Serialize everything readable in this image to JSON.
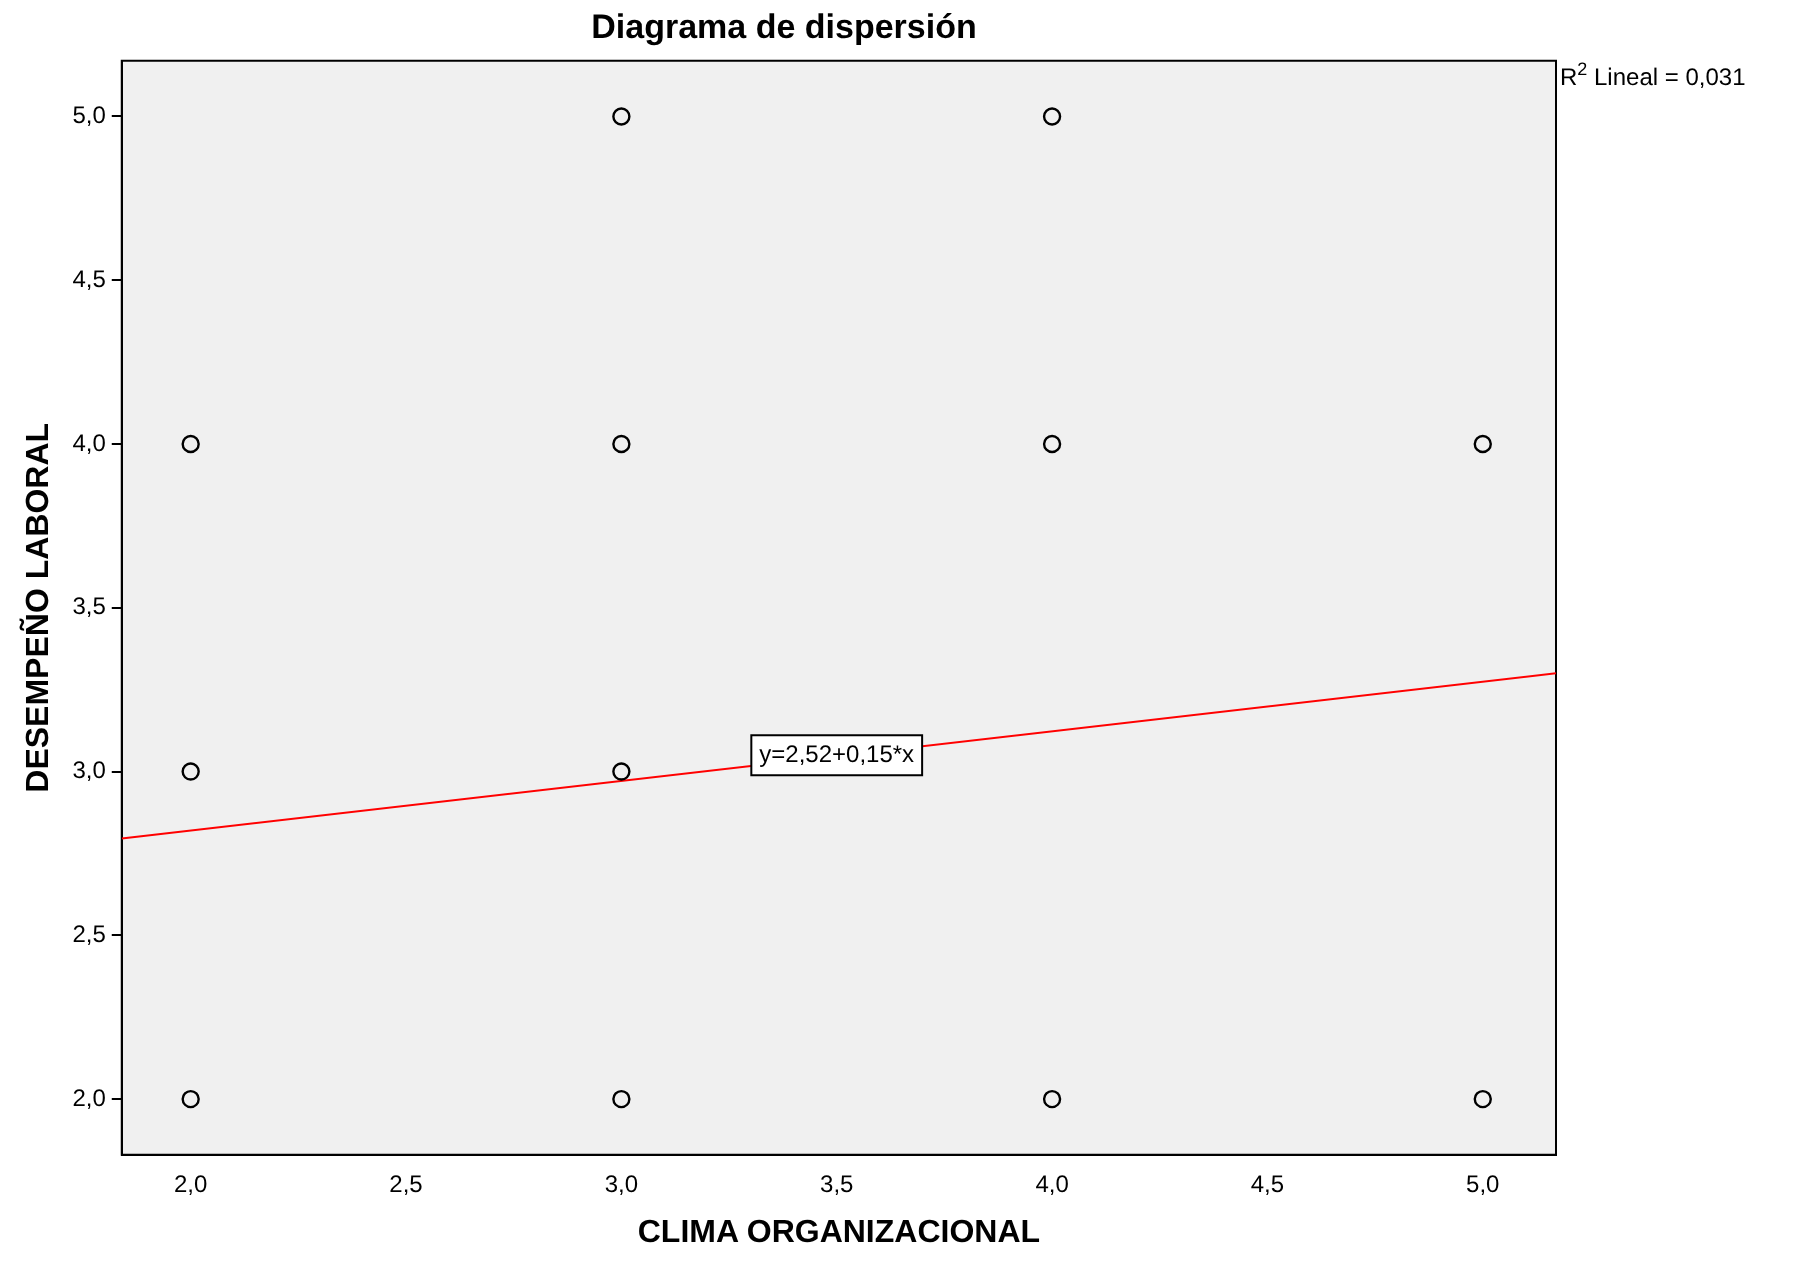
{
  "chart_data": {
    "type": "scatter",
    "title": "Diagrama de dispersión",
    "xlabel": "CLIMA ORGANIZACIONAL",
    "ylabel": "DESEMPEÑO LABORAL",
    "series": [
      {
        "color": "#000000",
        "marker": "circle",
        "x": [
          2,
          2,
          2,
          3,
          3,
          3,
          3,
          4,
          4,
          4,
          5,
          5
        ],
        "values": [
          4,
          3,
          2,
          5,
          4,
          3,
          2,
          5,
          4,
          2,
          4,
          2
        ]
      },
      {
        "type": "line",
        "color": "#ff0000",
        "marker": "none",
        "x": [
          1.84,
          5.17
        ],
        "values": [
          2.796,
          3.3
        ]
      }
    ],
    "xlim": [
      1.84,
      5.17
    ],
    "ylim": [
      1.83,
      5.17
    ],
    "xticks": [
      {
        "value": 2,
        "label": "2,0"
      },
      {
        "value": 2.5,
        "label": "2,5"
      },
      {
        "value": 3,
        "label": "3,0"
      },
      {
        "value": 3.5,
        "label": "3,5"
      },
      {
        "value": 4,
        "label": "4,0"
      },
      {
        "value": 4.5,
        "label": "4,5"
      },
      {
        "value": 5,
        "label": "5,0"
      }
    ],
    "yticks": [
      {
        "value": 2,
        "label": "2,0"
      },
      {
        "value": 2.5,
        "label": "2,5"
      },
      {
        "value": 3,
        "label": "3,0"
      },
      {
        "value": 3.5,
        "label": "3,5"
      },
      {
        "value": 4,
        "label": "4,0"
      },
      {
        "value": 4.5,
        "label": "4,5"
      },
      {
        "value": 5,
        "label": "5,0"
      }
    ],
    "grid": false,
    "legend": false,
    "annotations": [
      "R$^{2}$ Lineal = 0,031",
      {
        "text": "y=2,52+0,15*x",
        "x": 3.5,
        "y": 3.05
      }
    ]
  }
}
